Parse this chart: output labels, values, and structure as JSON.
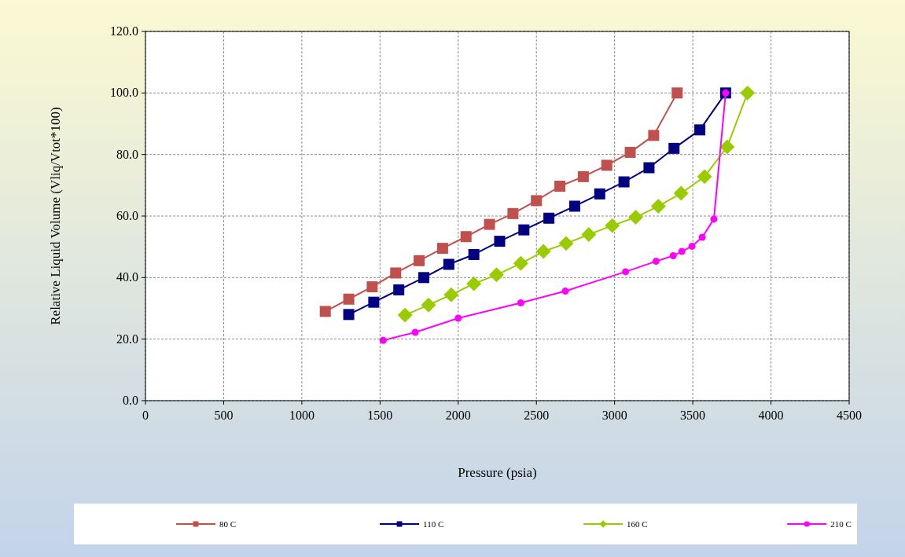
{
  "chart_data": {
    "type": "line",
    "xlabel": "Pressure (psia)",
    "ylabel": "Relative Liquid Volume (Vliq/Vtot*100)",
    "xlim": [
      0,
      4500
    ],
    "xticks": [
      0,
      500,
      1000,
      1500,
      2000,
      2500,
      3000,
      3500,
      4000,
      4500
    ],
    "ylim": [
      0,
      120
    ],
    "yticks": [
      {
        "value": 0,
        "label": "0.0"
      },
      {
        "value": 20,
        "label": "20.0"
      },
      {
        "value": 40,
        "label": "40.0"
      },
      {
        "value": 60,
        "label": "60.0"
      },
      {
        "value": 80,
        "label": "80.0"
      },
      {
        "value": 100,
        "label": "100.0"
      },
      {
        "value": 120,
        "label": "120.0"
      }
    ],
    "grid": true,
    "legend": "bottom",
    "series": [
      {
        "name": "80 C",
        "color": "#c0504d",
        "marker": "square",
        "x": [
          1150,
          1300,
          1450,
          1600,
          1750,
          1900,
          2050,
          2200,
          2350,
          2500,
          2650,
          2800,
          2950,
          3100,
          3250,
          3400
        ],
        "values": [
          29,
          33,
          37,
          41.5,
          45.5,
          49.5,
          53.3,
          57.3,
          60.8,
          65,
          69.7,
          72.8,
          76.5,
          80.7,
          86.2,
          100
        ]
      },
      {
        "name": "110 C",
        "color": "#000080",
        "marker": "square",
        "x": [
          1300,
          1460,
          1620,
          1780,
          1940,
          2100,
          2265,
          2420,
          2580,
          2745,
          2905,
          3060,
          3220,
          3380,
          3545,
          3710
        ],
        "values": [
          28,
          32,
          36,
          40,
          44.3,
          47.5,
          51.8,
          55.5,
          59.3,
          63.2,
          67.2,
          71.1,
          75.7,
          82,
          88,
          100
        ]
      },
      {
        "name": "160 C",
        "color": "#99cc00",
        "marker": "diamond",
        "x": [
          1660,
          1810,
          1955,
          2100,
          2245,
          2400,
          2545,
          2690,
          2835,
          2985,
          3135,
          3280,
          3425,
          3575,
          3720,
          3850
        ],
        "values": [
          27.8,
          31.1,
          34.4,
          38,
          40.9,
          44.6,
          48.5,
          51.1,
          54,
          56.9,
          59.6,
          63.2,
          67.4,
          72.8,
          82.5,
          100
        ]
      },
      {
        "name": "210 C",
        "color": "#ff00ff",
        "marker": "circle",
        "x": [
          1520,
          1725,
          2000,
          2400,
          2685,
          3070,
          3265,
          3375,
          3430,
          3495,
          3560,
          3635,
          3710
        ],
        "values": [
          19.6,
          22.2,
          26.8,
          31.8,
          35.6,
          41.9,
          45.3,
          47.1,
          48.5,
          50.2,
          53.1,
          59,
          100
        ]
      }
    ]
  }
}
